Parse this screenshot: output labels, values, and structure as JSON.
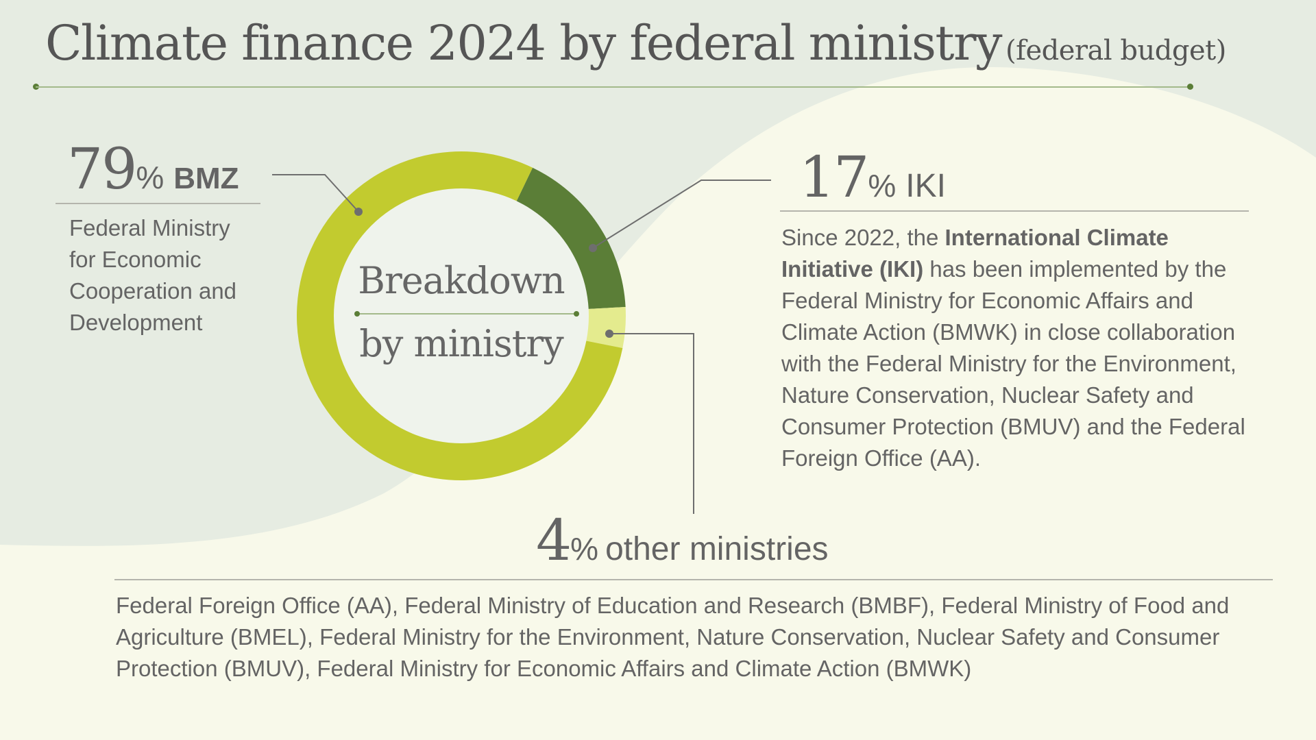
{
  "header": {
    "title": "Climate finance 2024 by federal ministry",
    "subtitle": "(federal budget)"
  },
  "colors": {
    "bmz": "#c2cb2f",
    "iki": "#5b7e37",
    "other": "#e4eb8e",
    "background_light": "#f8f9ea",
    "background_shape": "#e6ece2",
    "donut_center": "#eff3ec",
    "accent_rule": "#a3b98a",
    "text": "#646464"
  },
  "chart_data": {
    "type": "pie",
    "variant": "donut",
    "title": "Climate finance 2024 by federal ministry (federal budget)",
    "center_label": [
      "Breakdown",
      "by ministry"
    ],
    "unit": "%",
    "categories": [
      "BMZ",
      "IKI",
      "other ministries"
    ],
    "values": [
      79,
      17,
      4
    ],
    "start_angle_deg": 25.7,
    "direction": "clockwise",
    "segment_order": [
      "IKI",
      "other ministries",
      "BMZ"
    ]
  },
  "segments": {
    "bmz": {
      "value": "79",
      "sign": "%",
      "label": "BMZ",
      "description_lines": [
        "Federal Ministry",
        "for Economic",
        "Cooperation and",
        "Development"
      ]
    },
    "iki": {
      "value": "17",
      "sign": "%",
      "label": "IKI",
      "description": {
        "intro": "Since 2022, the ",
        "bold": "International Climate Initiative (IKI)",
        "rest": " has been implemented by the Federal Ministry for Economic Affairs and Climate Action (BMWK) in close collaboration with the Federal Ministry for the Environment, Nature Conservation, Nuclear Safety and Consumer Protection (BMUV) and the Federal Foreign Office (AA)."
      }
    },
    "other": {
      "value": "4",
      "sign": "%",
      "label": "other ministries",
      "description": "Federal Foreign Office (AA), Federal Ministry of Education and Research (BMBF), Federal Ministry of Food and Agriculture (BMEL), Federal Ministry for the Environment, Nature Conservation, Nuclear Safety and Consumer Protection (BMUV), Federal Ministry for Economic Affairs and Climate Action (BMWK)"
    }
  }
}
